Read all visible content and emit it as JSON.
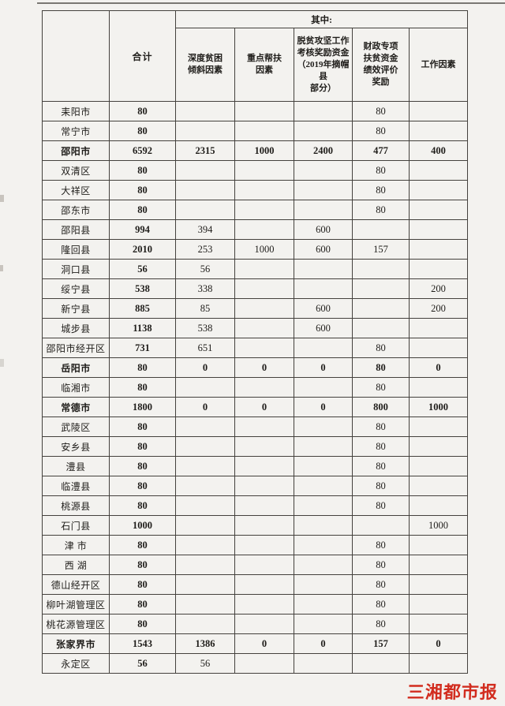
{
  "table": {
    "header": {
      "corner": "",
      "total_label": "合计",
      "qizhong_label": "其中:",
      "sub_columns": [
        "深度贫困\n倾斜因素",
        "重点帮扶\n因素",
        "脱贫攻坚工作\n考核奖励资金\n（2019年摘帽\n县\n部分）",
        "财政专项\n扶贫资金\n绩效评价\n奖励",
        "工作因素"
      ]
    },
    "rows": [
      {
        "name": "耒阳市",
        "bold": false,
        "values": [
          "80",
          "",
          "",
          "",
          "80",
          ""
        ]
      },
      {
        "name": "常宁市",
        "bold": false,
        "values": [
          "80",
          "",
          "",
          "",
          "80",
          ""
        ]
      },
      {
        "name": "邵阳市",
        "bold": true,
        "values": [
          "6592",
          "2315",
          "1000",
          "2400",
          "477",
          "400"
        ]
      },
      {
        "name": "双清区",
        "bold": false,
        "values": [
          "80",
          "",
          "",
          "",
          "80",
          ""
        ]
      },
      {
        "name": "大祥区",
        "bold": false,
        "values": [
          "80",
          "",
          "",
          "",
          "80",
          ""
        ]
      },
      {
        "name": "邵东市",
        "bold": false,
        "values": [
          "80",
          "",
          "",
          "",
          "80",
          ""
        ]
      },
      {
        "name": "邵阳县",
        "bold": false,
        "values": [
          "994",
          "394",
          "",
          "600",
          "",
          ""
        ]
      },
      {
        "name": "隆回县",
        "bold": false,
        "values": [
          "2010",
          "253",
          "1000",
          "600",
          "157",
          ""
        ]
      },
      {
        "name": "洞口县",
        "bold": false,
        "values": [
          "56",
          "56",
          "",
          "",
          "",
          ""
        ]
      },
      {
        "name": "绥宁县",
        "bold": false,
        "values": [
          "538",
          "338",
          "",
          "",
          "",
          "200"
        ]
      },
      {
        "name": "新宁县",
        "bold": false,
        "values": [
          "885",
          "85",
          "",
          "600",
          "",
          "200"
        ]
      },
      {
        "name": "城步县",
        "bold": false,
        "values": [
          "1138",
          "538",
          "",
          "600",
          "",
          ""
        ]
      },
      {
        "name": "邵阳市经开区",
        "bold": false,
        "values": [
          "731",
          "651",
          "",
          "",
          "80",
          ""
        ]
      },
      {
        "name": "岳阳市",
        "bold": true,
        "values": [
          "80",
          "0",
          "0",
          "0",
          "80",
          "0"
        ]
      },
      {
        "name": "临湘市",
        "bold": false,
        "values": [
          "80",
          "",
          "",
          "",
          "80",
          ""
        ]
      },
      {
        "name": "常德市",
        "bold": true,
        "values": [
          "1800",
          "0",
          "0",
          "0",
          "800",
          "1000"
        ]
      },
      {
        "name": "武陵区",
        "bold": false,
        "values": [
          "80",
          "",
          "",
          "",
          "80",
          ""
        ]
      },
      {
        "name": "安乡县",
        "bold": false,
        "values": [
          "80",
          "",
          "",
          "",
          "80",
          ""
        ]
      },
      {
        "name": "澧县",
        "bold": false,
        "values": [
          "80",
          "",
          "",
          "",
          "80",
          ""
        ]
      },
      {
        "name": "临澧县",
        "bold": false,
        "values": [
          "80",
          "",
          "",
          "",
          "80",
          ""
        ]
      },
      {
        "name": "桃源县",
        "bold": false,
        "values": [
          "80",
          "",
          "",
          "",
          "80",
          ""
        ]
      },
      {
        "name": "石门县",
        "bold": false,
        "values": [
          "1000",
          "",
          "",
          "",
          "",
          "1000"
        ]
      },
      {
        "name": "津 市",
        "bold": false,
        "values": [
          "80",
          "",
          "",
          "",
          "80",
          ""
        ]
      },
      {
        "name": "西 湖",
        "bold": false,
        "values": [
          "80",
          "",
          "",
          "",
          "80",
          ""
        ]
      },
      {
        "name": "德山经开区",
        "bold": false,
        "values": [
          "80",
          "",
          "",
          "",
          "80",
          ""
        ]
      },
      {
        "name": "柳叶湖管理区",
        "bold": false,
        "values": [
          "80",
          "",
          "",
          "",
          "80",
          ""
        ]
      },
      {
        "name": "桃花源管理区",
        "bold": false,
        "values": [
          "80",
          "",
          "",
          "",
          "80",
          ""
        ]
      },
      {
        "name": "张家界市",
        "bold": true,
        "values": [
          "1543",
          "1386",
          "0",
          "0",
          "157",
          "0"
        ]
      },
      {
        "name": "永定区",
        "bold": false,
        "values": [
          "56",
          "56",
          "",
          "",
          "",
          ""
        ]
      }
    ]
  },
  "watermark": {
    "text": "三湘都市报",
    "color": "#d22d1f"
  }
}
